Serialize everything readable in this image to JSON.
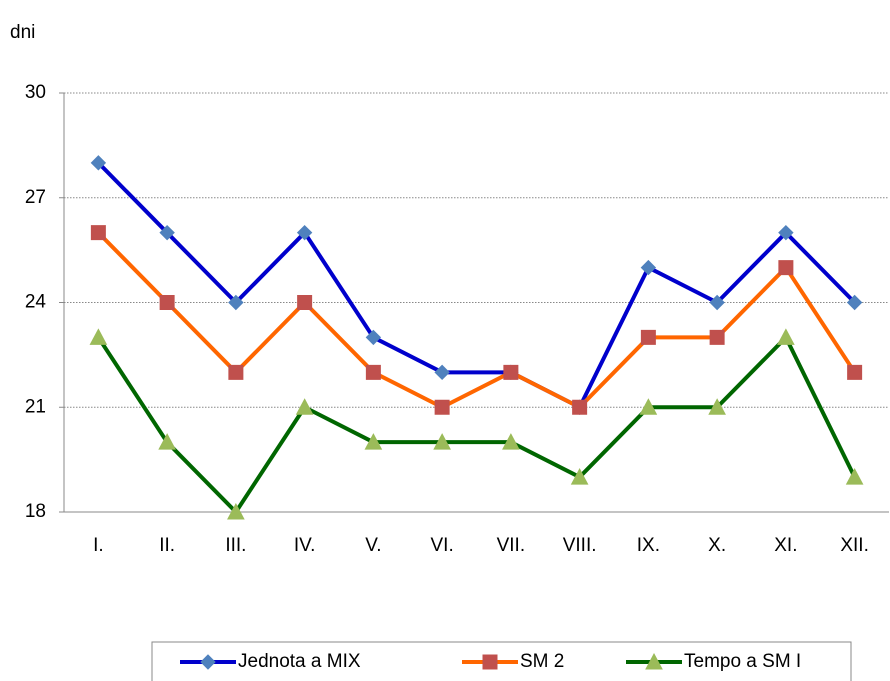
{
  "chart_data": {
    "type": "line",
    "y_axis_label": "dni",
    "categories": [
      "I.",
      "II.",
      "III.",
      "IV.",
      "V.",
      "VI.",
      "VII.",
      "VIII.",
      "IX.",
      "X.",
      "XI.",
      "XII."
    ],
    "series": [
      {
        "name": "Jednota a MIX",
        "color": "#0000cc",
        "marker_color": "#4f81bd",
        "marker": "diamond",
        "values": [
          28,
          26,
          24,
          26,
          23,
          22,
          22,
          21,
          25,
          24,
          26,
          24
        ]
      },
      {
        "name": "SM 2",
        "color": "#ff6600",
        "marker_color": "#c0504d",
        "marker": "square",
        "values": [
          26,
          24,
          22,
          24,
          22,
          21,
          22,
          21,
          23,
          23,
          25,
          22
        ]
      },
      {
        "name": "Tempo a SM I",
        "color": "#006600",
        "marker_color": "#9bbb59",
        "marker": "triangle",
        "values": [
          23,
          20,
          18,
          21,
          20,
          20,
          20,
          19,
          21,
          21,
          23,
          19
        ]
      }
    ],
    "ylim": [
      18,
      30
    ],
    "yticks": [
      18,
      21,
      24,
      27,
      30
    ],
    "grid": true,
    "legend": "bottom"
  }
}
